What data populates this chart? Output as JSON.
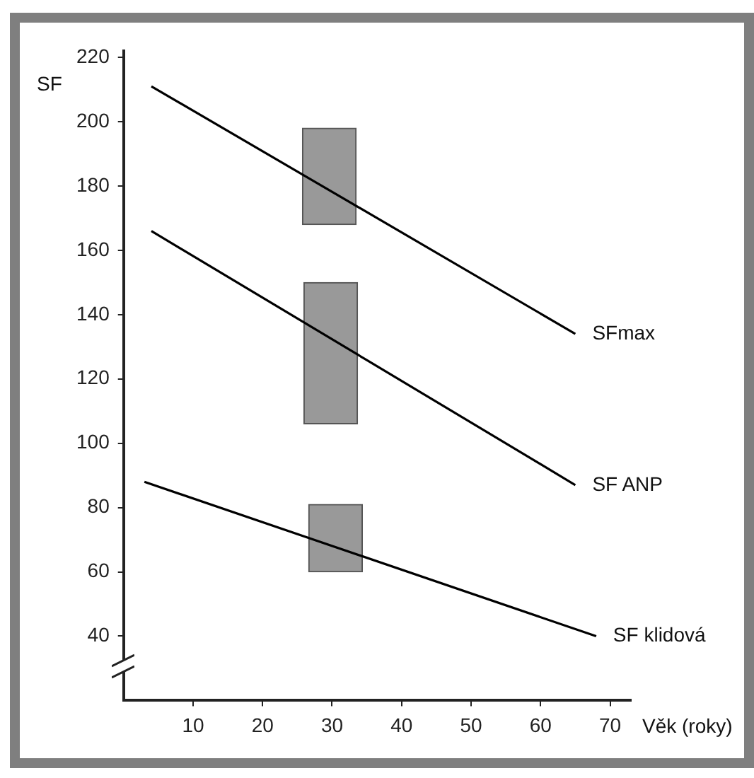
{
  "chart_data": {
    "type": "line",
    "xlabel": "Věk (roky)",
    "ylabel": "SF",
    "xlim": [
      0,
      73
    ],
    "ylim": [
      20,
      222
    ],
    "xticks": [
      10,
      20,
      30,
      40,
      50,
      60,
      70
    ],
    "yticks": [
      40,
      60,
      80,
      100,
      120,
      140,
      160,
      180,
      200,
      220
    ],
    "grid": false,
    "legend": false,
    "marker": "none",
    "line_style": "solid",
    "series": [
      {
        "name": "SFmax",
        "color": "#000000",
        "x": [
          4,
          65
        ],
        "values": [
          211,
          134
        ]
      },
      {
        "name": "SF ANP",
        "color": "#000000",
        "x": [
          4,
          65
        ],
        "values": [
          166,
          87
        ]
      },
      {
        "name": "SF klidová",
        "color": "#000000",
        "x": [
          3,
          68
        ],
        "values": [
          88,
          40
        ]
      },
      {
        "type": "bar",
        "color": "#999999",
        "x": [
          29.6,
          29.8,
          30.5
        ],
        "base": [
          168,
          106,
          60
        ],
        "values": [
          30,
          44,
          21
        ]
      }
    ]
  }
}
